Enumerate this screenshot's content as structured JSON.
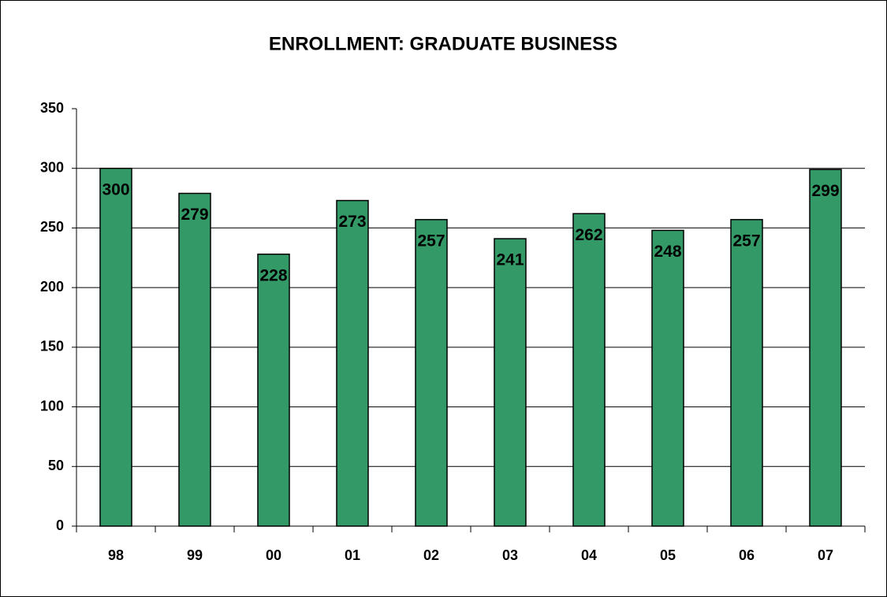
{
  "chart_data": {
    "type": "bar",
    "title": "ENROLLMENT: GRADUATE BUSINESS",
    "categories": [
      "98",
      "99",
      "00",
      "01",
      "02",
      "03",
      "04",
      "05",
      "06",
      "07"
    ],
    "values": [
      300,
      279,
      228,
      273,
      257,
      241,
      262,
      248,
      257,
      299
    ],
    "color": "#339966",
    "ylim": [
      0,
      350
    ],
    "yticks": [
      0,
      50,
      100,
      150,
      200,
      250,
      300,
      350
    ],
    "grid": true
  }
}
